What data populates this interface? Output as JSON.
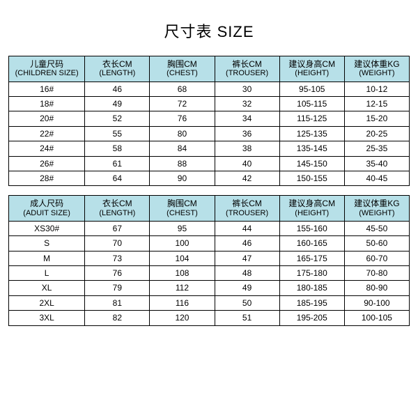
{
  "title": "尺寸表 SIZE",
  "header_bg": "#b7e0e8",
  "border_color": "#000000",
  "columns": [
    {
      "cn": "儿童尺码",
      "en": "(CHILDREN SIZE)"
    },
    {
      "cn": "衣长CM",
      "en": "(LENGTH)"
    },
    {
      "cn": "胸围CM",
      "en": "(CHEST)"
    },
    {
      "cn": "裤长CM",
      "en": "(TROUSER)"
    },
    {
      "cn": "建议身高CM",
      "en": "(HEIGHT)"
    },
    {
      "cn": "建议体重KG",
      "en": "(WEIGHT)"
    }
  ],
  "children_rows": [
    [
      "16#",
      "46",
      "68",
      "30",
      "95-105",
      "10-12"
    ],
    [
      "18#",
      "49",
      "72",
      "32",
      "105-115",
      "12-15"
    ],
    [
      "20#",
      "52",
      "76",
      "34",
      "115-125",
      "15-20"
    ],
    [
      "22#",
      "55",
      "80",
      "36",
      "125-135",
      "20-25"
    ],
    [
      "24#",
      "58",
      "84",
      "38",
      "135-145",
      "25-35"
    ],
    [
      "26#",
      "61",
      "88",
      "40",
      "145-150",
      "35-40"
    ],
    [
      "28#",
      "64",
      "90",
      "42",
      "150-155",
      "40-45"
    ]
  ],
  "adult_columns": [
    {
      "cn": "成人尺码",
      "en": "(ADUIT SIZE)"
    },
    {
      "cn": "衣长CM",
      "en": "(LENGTH)"
    },
    {
      "cn": "胸围CM",
      "en": "(CHEST)"
    },
    {
      "cn": "裤长CM",
      "en": "(TROUSER)"
    },
    {
      "cn": "建议身高CM",
      "en": "(HEIGHT)"
    },
    {
      "cn": "建议体重KG",
      "en": "(WEIGHT)"
    }
  ],
  "adult_rows": [
    [
      "XS30#",
      "67",
      "95",
      "44",
      "155-160",
      "45-50"
    ],
    [
      "S",
      "70",
      "100",
      "46",
      "160-165",
      "50-60"
    ],
    [
      "M",
      "73",
      "104",
      "47",
      "165-175",
      "60-70"
    ],
    [
      "L",
      "76",
      "108",
      "48",
      "175-180",
      "70-80"
    ],
    [
      "XL",
      "79",
      "112",
      "49",
      "180-185",
      "80-90"
    ],
    [
      "2XL",
      "81",
      "116",
      "50",
      "185-195",
      "90-100"
    ],
    [
      "3XL",
      "82",
      "120",
      "51",
      "195-205",
      "100-105"
    ]
  ]
}
